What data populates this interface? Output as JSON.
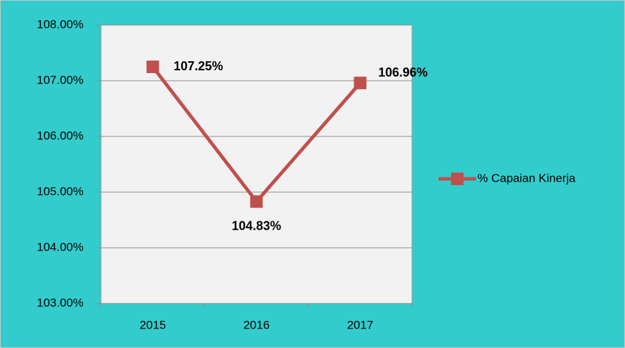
{
  "chart_data": {
    "type": "line",
    "categories": [
      "2015",
      "2016",
      "2017"
    ],
    "series": [
      {
        "name": "% Capaian Kinerja",
        "color": "#c0504d",
        "values": [
          107.25,
          104.83,
          106.96
        ],
        "value_labels": [
          "107.25%",
          "104.83%",
          "106.96%"
        ]
      }
    ],
    "ylim": [
      103,
      108
    ],
    "yticks": [
      {
        "value": 103,
        "label": "103.00%"
      },
      {
        "value": 104,
        "label": "104.00%"
      },
      {
        "value": 105,
        "label": "105.00%"
      },
      {
        "value": 106,
        "label": "106.00%"
      },
      {
        "value": 107,
        "label": "107.00%"
      },
      {
        "value": 108,
        "label": "108.00%"
      }
    ],
    "grid": true,
    "legend": "right"
  }
}
